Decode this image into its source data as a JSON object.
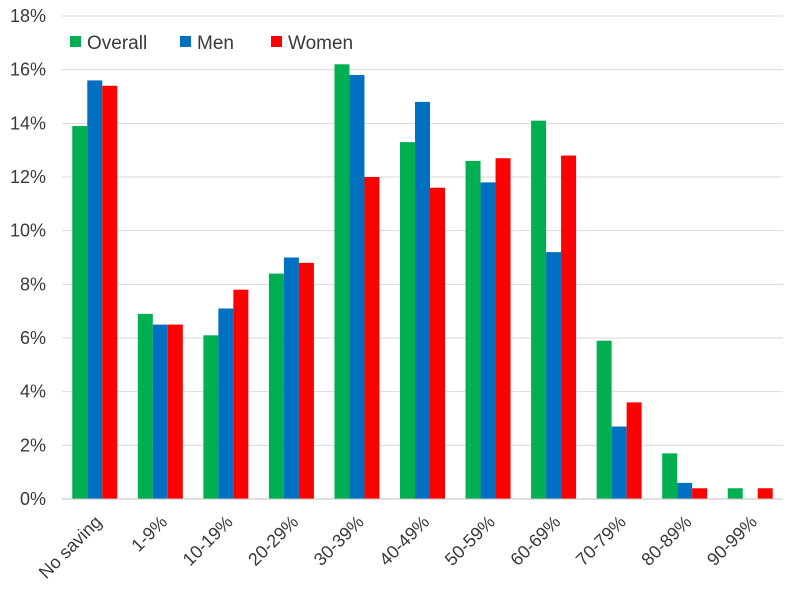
{
  "chart_data": {
    "type": "bar",
    "title": "",
    "xlabel": "",
    "ylabel": "",
    "categories": [
      "No saving",
      "1-9%",
      "10-19%",
      "20-29%",
      "30-39%",
      "40-49%",
      "50-59%",
      "60-69%",
      "70-79%",
      "80-89%",
      "90-99%"
    ],
    "series": [
      {
        "name": "Overall",
        "color": "#00b050",
        "values": [
          13.9,
          6.9,
          6.1,
          8.4,
          16.2,
          13.3,
          12.6,
          14.1,
          5.9,
          1.7,
          0.4
        ]
      },
      {
        "name": "Men",
        "color": "#0070c0",
        "values": [
          15.6,
          6.5,
          7.1,
          9.0,
          15.8,
          14.8,
          11.8,
          9.2,
          2.7,
          0.6,
          0.0
        ]
      },
      {
        "name": "Women",
        "color": "#ff0000",
        "values": [
          15.4,
          6.5,
          7.8,
          8.8,
          12.0,
          11.6,
          12.7,
          12.8,
          3.6,
          0.4,
          0.4
        ]
      }
    ],
    "ylim": [
      0,
      18
    ],
    "yticks": [
      "0%",
      "2%",
      "4%",
      "6%",
      "8%",
      "10%",
      "12%",
      "14%",
      "16%",
      "18%"
    ],
    "grid": true,
    "legend_position": "top-left"
  }
}
